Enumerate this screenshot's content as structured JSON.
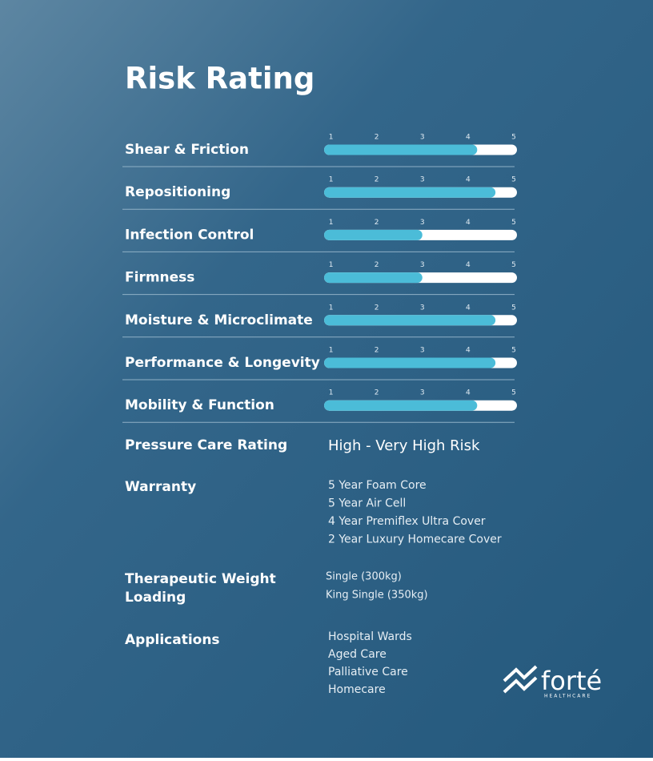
{
  "chart_data": {
    "type": "bar",
    "orientation": "horizontal",
    "title": "Risk Rating",
    "categories": [
      "Shear & Friction",
      "Repositioning",
      "Infection Control",
      "Firmness",
      "Moisture & Microclimate",
      "Performance & Longevity",
      "Mobility & Function"
    ],
    "values": [
      4.2,
      4.6,
      3,
      3,
      4.6,
      4.6,
      4.2
    ],
    "color": "#4bbcd8",
    "track_color": "#ffffff",
    "xlim": [
      0.85,
      5.07
    ],
    "xticks": [
      1,
      2,
      3,
      4,
      5
    ]
  },
  "details": {
    "pressure": {
      "label": "Pressure Care Rating",
      "value": "High - Very High Risk"
    },
    "warranty": {
      "label": "Warranty",
      "items": [
        "5 Year Foam Core",
        "5 Year Air Cell",
        "4 Year Premiflex Ultra Cover",
        "2 Year Luxury Homecare Cover"
      ]
    },
    "weight": {
      "label_lines": [
        "Therapeutic Weight",
        "Loading"
      ],
      "items": [
        "Single (300kg)",
        "King Single (350kg)"
      ]
    },
    "applications": {
      "label": "Applications",
      "items": [
        "Hospital Wards",
        "Aged Care",
        "Palliative Care",
        "Homecare"
      ]
    },
    "logo": {
      "name": "forté",
      "sub": "HEALTHCARE"
    }
  }
}
